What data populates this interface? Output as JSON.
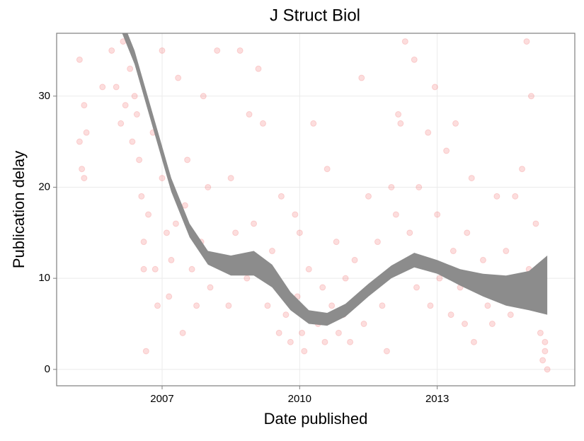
{
  "chart_data": {
    "type": "scatter",
    "title": "J Struct Biol",
    "x_label": "Date published",
    "y_label": "Publication delay",
    "x": [
      2005.2,
      2005.2,
      2005.25,
      2005.3,
      2005.3,
      2005.35,
      2005.7,
      2005.9,
      2006.0,
      2006.1,
      2006.15,
      2006.2,
      2006.3,
      2006.35,
      2006.4,
      2006.45,
      2006.5,
      2006.55,
      2006.6,
      2006.6,
      2006.65,
      2006.7,
      2006.8,
      2006.85,
      2006.9,
      2007.0,
      2007.0,
      2007.1,
      2007.15,
      2007.2,
      2007.3,
      2007.35,
      2007.45,
      2007.5,
      2007.55,
      2007.65,
      2007.75,
      2007.85,
      2007.9,
      2008.0,
      2008.05,
      2008.2,
      2008.3,
      2008.45,
      2008.5,
      2008.6,
      2008.7,
      2008.85,
      2008.9,
      2009.0,
      2009.1,
      2009.2,
      2009.3,
      2009.4,
      2009.5,
      2009.55,
      2009.6,
      2009.7,
      2009.8,
      2009.9,
      2009.95,
      2010.0,
      2010.05,
      2010.1,
      2010.15,
      2010.2,
      2010.3,
      2010.4,
      2010.5,
      2010.55,
      2010.6,
      2010.7,
      2010.8,
      2010.85,
      2010.95,
      2011.0,
      2011.1,
      2011.2,
      2011.3,
      2011.35,
      2011.4,
      2011.5,
      2011.6,
      2011.7,
      2011.8,
      2011.9,
      2012.0,
      2012.1,
      2012.15,
      2012.2,
      2012.25,
      2012.3,
      2012.4,
      2012.5,
      2012.55,
      2012.6,
      2012.7,
      2012.8,
      2012.85,
      2012.95,
      2013.0,
      2013.05,
      2013.2,
      2013.3,
      2013.35,
      2013.4,
      2013.5,
      2013.6,
      2013.65,
      2013.75,
      2013.8,
      2013.9,
      2014.0,
      2014.1,
      2014.2,
      2014.3,
      2014.4,
      2014.5,
      2014.6,
      2014.7,
      2014.75,
      2014.85,
      2014.95,
      2015.0,
      2015.05,
      2015.1,
      2015.15,
      2015.25,
      2015.3,
      2015.35,
      2015.4,
      2015.35
    ],
    "values": [
      34,
      25,
      22,
      29,
      21,
      26,
      31,
      35,
      31,
      27,
      36,
      29,
      33,
      25,
      30,
      28,
      23,
      19,
      14,
      11,
      2,
      17,
      26,
      11,
      7,
      21,
      35,
      15,
      8,
      12,
      16,
      32,
      4,
      18,
      23,
      11,
      7,
      14,
      30,
      20,
      9,
      35,
      12,
      7,
      21,
      15,
      35,
      10,
      28,
      16,
      33,
      27,
      7,
      13,
      10,
      4,
      19,
      6,
      3,
      17,
      8,
      15,
      4,
      2,
      6,
      11,
      27,
      5,
      9,
      3,
      22,
      7,
      14,
      4,
      6,
      10,
      3,
      12,
      8,
      32,
      5,
      19,
      9,
      14,
      7,
      2,
      20,
      17,
      28,
      27,
      11,
      36,
      15,
      34,
      9,
      20,
      12,
      26,
      7,
      31,
      17,
      10,
      24,
      6,
      13,
      27,
      9,
      5,
      15,
      21,
      3,
      10,
      12,
      7,
      5,
      19,
      10,
      13,
      6,
      19,
      9,
      22,
      36,
      11,
      30,
      7,
      16,
      4,
      1,
      3,
      0,
      2
    ],
    "color": "#e8191c",
    "opacity": 0.15,
    "band": {
      "x": [
        2006.0,
        2006.4,
        2006.8,
        2007.2,
        2007.6,
        2008.0,
        2008.5,
        2009.0,
        2009.4,
        2009.8,
        2010.2,
        2010.6,
        2011.0,
        2011.5,
        2012.0,
        2012.5,
        2013.0,
        2013.5,
        2014.0,
        2014.5,
        2015.0,
        2015.4
      ],
      "lower": [
        38.5,
        33.5,
        26.5,
        19.5,
        14.5,
        11.5,
        10.3,
        10.3,
        9,
        6.5,
        5,
        4.8,
        5.8,
        8,
        10,
        11.2,
        10.5,
        9.2,
        8,
        7,
        6.5,
        6
      ],
      "upper": [
        40,
        35,
        28,
        21,
        16,
        13,
        12.5,
        13,
        11.5,
        8.5,
        6.5,
        6.2,
        7.2,
        9.4,
        11.4,
        12.8,
        12,
        11,
        10.5,
        10.3,
        10.8,
        12.5
      ],
      "color": "#8c8c8c"
    },
    "xlim": [
      2004.7,
      2016
    ],
    "ylim": [
      -1.8,
      36.9
    ],
    "xticks": [
      2007,
      2010,
      2013
    ],
    "yticks": [
      0,
      10,
      20,
      30
    ],
    "grid": true
  }
}
